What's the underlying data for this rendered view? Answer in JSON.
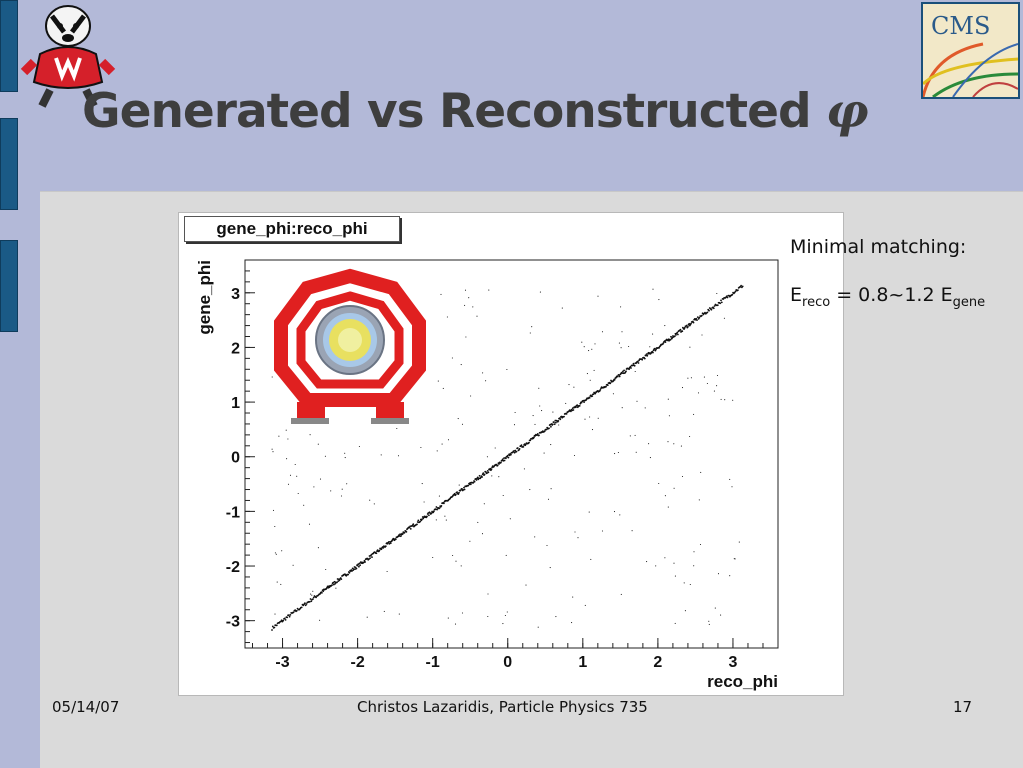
{
  "slide": {
    "title": "Generated vs Reconstructed",
    "title_symbol": "φ",
    "notes": {
      "line1": "Minimal matching:",
      "formula": {
        "e1": "E",
        "e1_sub": "reco",
        "middle": " = 0.8~1.2 ",
        "e2": "E",
        "e2_sub": "gene"
      }
    },
    "footer": {
      "date": "05/14/07",
      "author": "Christos Lazaridis, Particle Physics 735",
      "page": "17"
    },
    "logos": {
      "cms_text": "CMS"
    }
  },
  "chart_data": {
    "type": "scatter",
    "title": "gene_phi:reco_phi",
    "xlabel": "reco_phi",
    "ylabel": "gene_phi",
    "xlim": [
      -3.5,
      3.6
    ],
    "ylim": [
      -3.5,
      3.6
    ],
    "xticks": [
      -3,
      -2,
      -1,
      0,
      1,
      2,
      3
    ],
    "yticks": [
      -3,
      -2,
      -1,
      0,
      1,
      2,
      3
    ],
    "grid": false,
    "legend": "none",
    "series": [
      {
        "points_desc": "dense diagonal",
        "x": [
          -3.14,
          -2.5,
          -2.0,
          -1.5,
          -1.0,
          -0.5,
          0.0,
          0.5,
          1.0,
          1.5,
          2.0,
          2.5,
          3.14
        ],
        "y": [
          -3.14,
          -2.5,
          -2.0,
          -1.5,
          -1.0,
          -0.5,
          0.0,
          0.5,
          1.0,
          1.5,
          2.0,
          2.5,
          3.14
        ]
      }
    ],
    "colors": {
      "points": "#111111",
      "frame": "#222222"
    }
  }
}
